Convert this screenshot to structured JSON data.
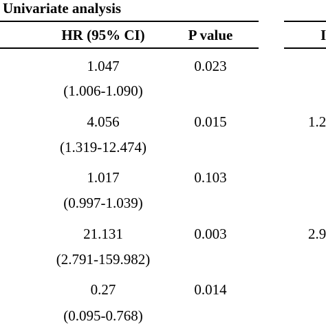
{
  "table": {
    "group_title": "Univariate analysis",
    "columns": {
      "hr": "HR (95% CI)",
      "p": "P value",
      "next_partial": "I"
    },
    "rows": [
      {
        "hr": "1.047",
        "ci": "(1.006-1.090)",
        "p": "0.023",
        "multi_partial": ""
      },
      {
        "hr": "4.056",
        "ci": "(1.319-12.474)",
        "p": "0.015",
        "multi_partial": "1.2"
      },
      {
        "hr": "1.017",
        "ci": "(0.997-1.039)",
        "p": "0.103",
        "multi_partial": ""
      },
      {
        "hr": "21.131",
        "ci": "(2.791-159.982)",
        "p": "0.003",
        "multi_partial": "2.9"
      },
      {
        "hr": "0.27",
        "ci": "(0.095-0.768)",
        "p": "0.014",
        "multi_partial": ""
      }
    ]
  }
}
